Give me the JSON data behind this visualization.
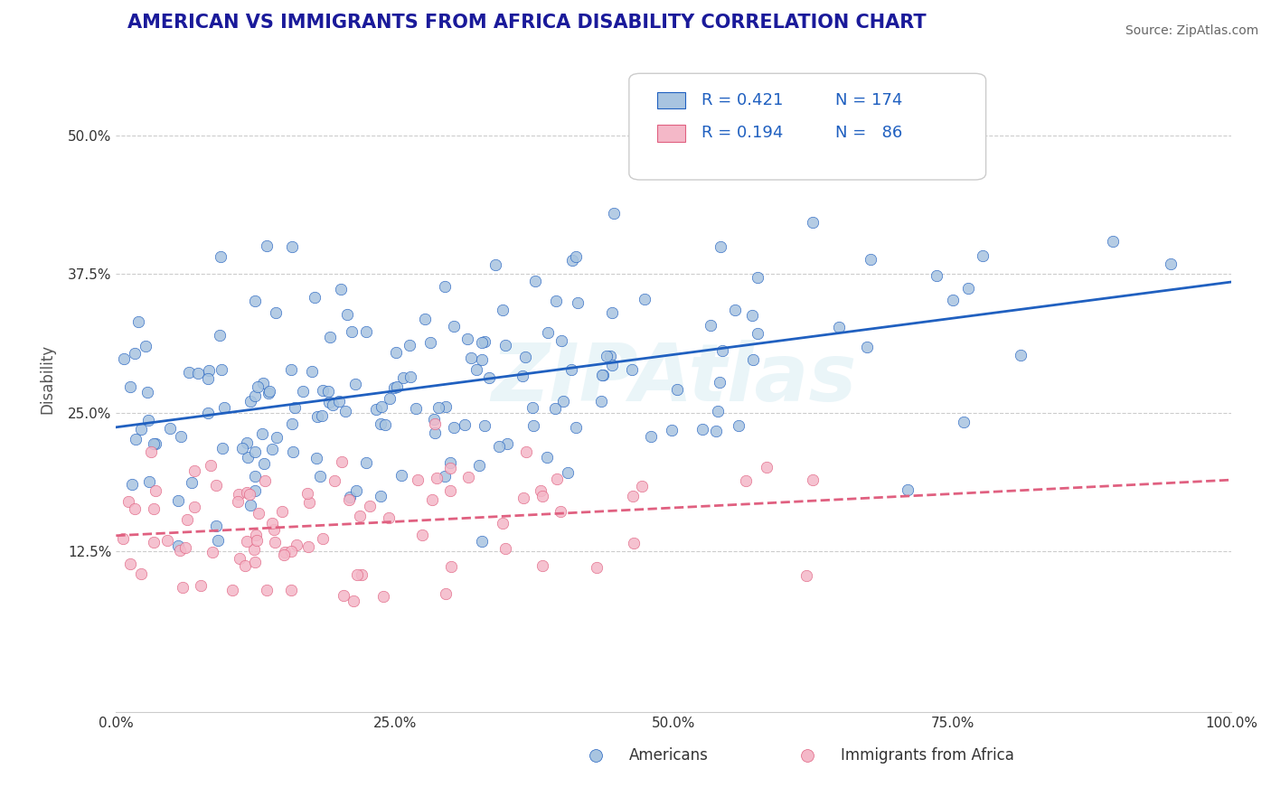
{
  "title": "AMERICAN VS IMMIGRANTS FROM AFRICA DISABILITY CORRELATION CHART",
  "source_text": "Source: ZipAtlas.com",
  "xlabel": "",
  "ylabel": "Disability",
  "watermark": "ZIPAtlas",
  "legend_r1": "R = 0.421",
  "legend_n1": "N = 174",
  "legend_r2": "R = 0.194",
  "legend_n2": "N =  86",
  "legend_label1": "Americans",
  "legend_label2": "Immigrants from Africa",
  "xlim": [
    0.0,
    1.0
  ],
  "ylim": [
    -0.02,
    0.58
  ],
  "yticks": [
    0.125,
    0.25,
    0.375,
    0.5
  ],
  "ytick_labels": [
    "12.5%",
    "25.0%",
    "37.5%",
    "50.0%"
  ],
  "xticks": [
    0.0,
    0.25,
    0.5,
    0.75,
    1.0
  ],
  "xtick_labels": [
    "0.0%",
    "25.0%",
    "50.0%",
    "75.0%",
    "100.0%"
  ],
  "color_americans": "#a8c4e0",
  "color_immigrants": "#f4b8c8",
  "color_line_americans": "#2060c0",
  "color_line_immigrants": "#e06080",
  "title_color": "#1a1a9a",
  "axis_label_color": "#555555",
  "legend_text_color": "#2060c0",
  "background_color": "#ffffff",
  "grid_color": "#cccccc",
  "R1": 0.421,
  "R2": 0.194,
  "N1": 174,
  "N2": 86,
  "seed1": 42,
  "seed2": 99
}
